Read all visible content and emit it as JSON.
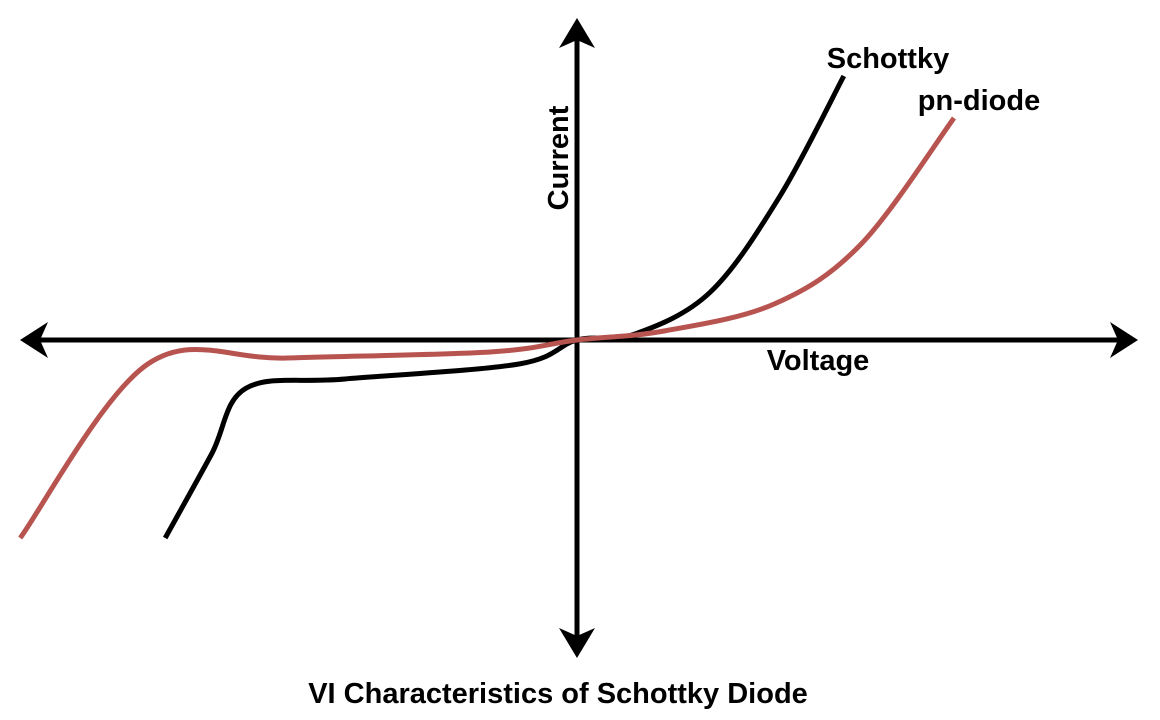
{
  "chart_data": {
    "type": "line",
    "title": "VI Characteristics of Schottky Diode",
    "xlabel": "Voltage",
    "ylabel": "Current",
    "xlim": [
      -10,
      10
    ],
    "ylim": [
      -10,
      10
    ],
    "axis_ticks": false,
    "grid": false,
    "legend": "none (series labeled at curve ends)",
    "series": [
      {
        "name": "Schottky",
        "color": "#000000",
        "points": [
          {
            "x": -7.1,
            "y": -6.6
          },
          {
            "x": -6.3,
            "y": -3.8
          },
          {
            "x": -5.7,
            "y": -1.6
          },
          {
            "x": -4.0,
            "y": -1.3
          },
          {
            "x": -1.0,
            "y": -0.8
          },
          {
            "x": 0.0,
            "y": 0.0
          },
          {
            "x": 1.0,
            "y": 0.2
          },
          {
            "x": 2.3,
            "y": 1.6
          },
          {
            "x": 3.5,
            "y": 4.8
          },
          {
            "x": 4.6,
            "y": 8.8
          }
        ]
      },
      {
        "name": "pn-diode",
        "color": "#b85450",
        "points": [
          {
            "x": -9.6,
            "y": -6.6
          },
          {
            "x": -7.4,
            "y": -0.8
          },
          {
            "x": -5.0,
            "y": -0.6
          },
          {
            "x": -1.5,
            "y": -0.4
          },
          {
            "x": 0.0,
            "y": 0.0
          },
          {
            "x": 1.5,
            "y": 0.3
          },
          {
            "x": 3.4,
            "y": 1.2
          },
          {
            "x": 4.9,
            "y": 3.2
          },
          {
            "x": 6.5,
            "y": 7.4
          }
        ]
      }
    ]
  }
}
